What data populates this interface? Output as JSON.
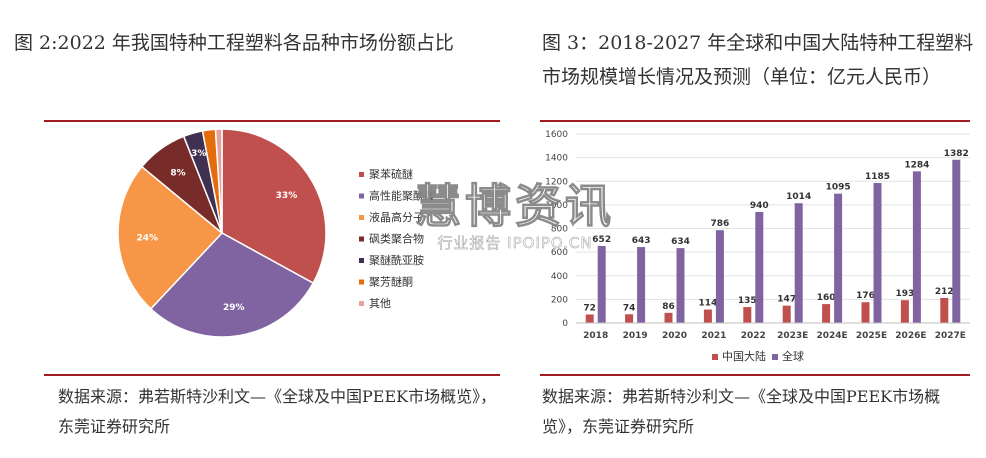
{
  "left": {
    "title": "图 2:2022 年我国特种工程塑料各品种市场份额占比",
    "source": "数据来源：弗若斯特沙利文—《全球及中国PEEK市场概览》，东莞证券研究所"
  },
  "right": {
    "title": "图 3：2018-2027 年全球和中国大陆特种工程塑料市场规模增长情况及预测（单位：亿元人民币）",
    "source": "数据来源：弗若斯特沙利文—《全球及中国PEEK市场概览》，东莞证券研究所"
  },
  "watermark": {
    "main": "慧博资讯",
    "sub": "行业报告 IPOIPO.CN"
  },
  "colors": {
    "rule": "#a11d21",
    "china": "#c0504d",
    "global": "#8064a2"
  },
  "chart_data": [
    {
      "type": "pie",
      "slices": [
        {
          "name": "聚苯硫醚",
          "value": 33,
          "label": "33%",
          "color": "#c0504d"
        },
        {
          "name": "高性能聚酰胺",
          "value": 29,
          "label": "29%",
          "color": "#8064a2"
        },
        {
          "name": "液晶高分子",
          "value": 24,
          "label": "24%",
          "color": "#f79646"
        },
        {
          "name": "砜类聚合物",
          "value": 8,
          "label": "8%",
          "color": "#772c2a"
        },
        {
          "name": "聚醚酰亚胺",
          "value": 3,
          "label": "3%",
          "color": "#403152"
        },
        {
          "name": "聚芳醚酮",
          "value": 2,
          "label": "2%",
          "color": "#e46c0a"
        },
        {
          "name": "其他",
          "value": 1,
          "label": "1%",
          "color": "#e6a0a0"
        }
      ],
      "legend_position": "right"
    },
    {
      "type": "bar",
      "categories": [
        "2018",
        "2019",
        "2020",
        "2021",
        "2022",
        "2023E",
        "2024E",
        "2025E",
        "2026E",
        "2027E"
      ],
      "series": [
        {
          "name": "中国大陆",
          "values": [
            72,
            74,
            86,
            114,
            135,
            147,
            160,
            176,
            193,
            212
          ],
          "color": "#c0504d"
        },
        {
          "name": "全球",
          "values": [
            652,
            643,
            634,
            786,
            940,
            1014,
            1095,
            1185,
            1284,
            1382
          ],
          "color": "#8064a2"
        }
      ],
      "yticks": [
        "0",
        "200",
        "400",
        "600",
        "800",
        "1000",
        "1200",
        "1400",
        "1600"
      ],
      "ylim": [
        0,
        1600
      ],
      "legend_position": "bottom"
    }
  ]
}
